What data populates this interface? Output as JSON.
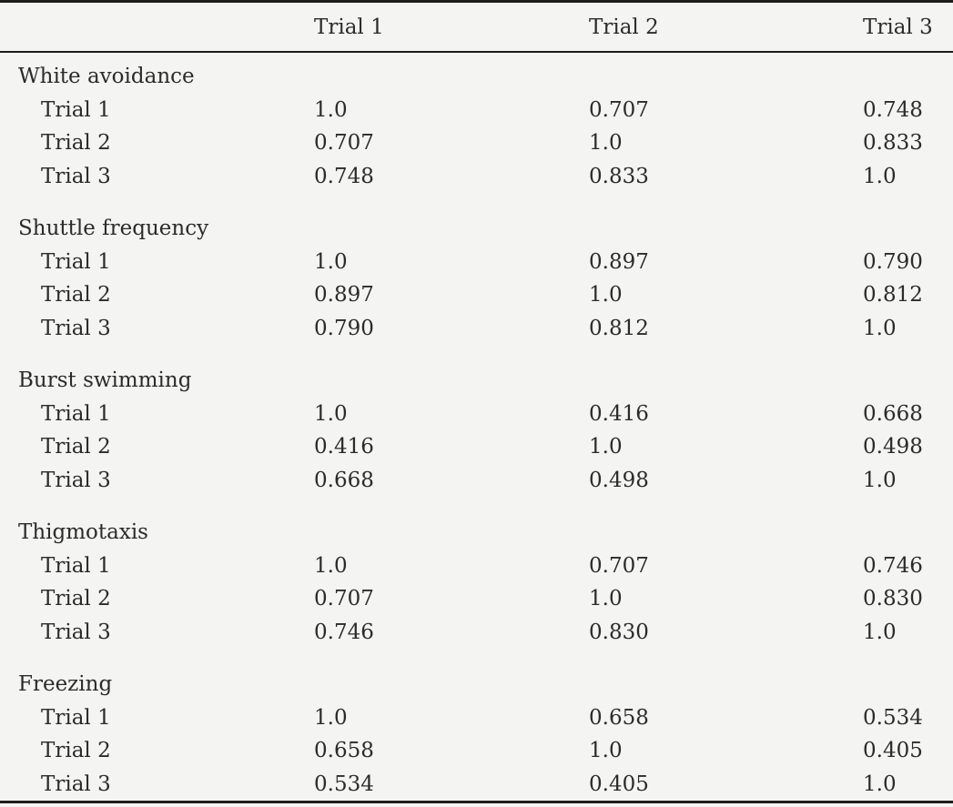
{
  "colors": {
    "background": "#f4f4f2",
    "text": "#2b2b29",
    "rule": "#1d1d1b"
  },
  "table": {
    "columns": [
      "",
      "Trial 1",
      "Trial 2",
      "Trial 3"
    ],
    "sections": [
      {
        "name": "White avoidance",
        "rows": [
          {
            "label": "Trial 1",
            "values": [
              "1.0",
              "0.707",
              "0.748"
            ]
          },
          {
            "label": "Trial 2",
            "values": [
              "0.707",
              "1.0",
              "0.833"
            ]
          },
          {
            "label": "Trial 3",
            "values": [
              "0.748",
              "0.833",
              "1.0"
            ]
          }
        ]
      },
      {
        "name": "Shuttle frequency",
        "rows": [
          {
            "label": "Trial 1",
            "values": [
              "1.0",
              "0.897",
              "0.790"
            ]
          },
          {
            "label": "Trial 2",
            "values": [
              "0.897",
              "1.0",
              "0.812"
            ]
          },
          {
            "label": "Trial 3",
            "values": [
              "0.790",
              "0.812",
              "1.0"
            ]
          }
        ]
      },
      {
        "name": "Burst swimming",
        "rows": [
          {
            "label": "Trial 1",
            "values": [
              "1.0",
              "0.416",
              "0.668"
            ]
          },
          {
            "label": "Trial 2",
            "values": [
              "0.416",
              "1.0",
              "0.498"
            ]
          },
          {
            "label": "Trial 3",
            "values": [
              "0.668",
              "0.498",
              "1.0"
            ]
          }
        ]
      },
      {
        "name": "Thigmotaxis",
        "rows": [
          {
            "label": "Trial 1",
            "values": [
              "1.0",
              "0.707",
              "0.746"
            ]
          },
          {
            "label": "Trial 2",
            "values": [
              "0.707",
              "1.0",
              "0.830"
            ]
          },
          {
            "label": "Trial 3",
            "values": [
              "0.746",
              "0.830",
              "1.0"
            ]
          }
        ]
      },
      {
        "name": "Freezing",
        "rows": [
          {
            "label": "Trial 1",
            "values": [
              "1.0",
              "0.658",
              "0.534"
            ]
          },
          {
            "label": "Trial 2",
            "values": [
              "0.658",
              "1.0",
              "0.405"
            ]
          },
          {
            "label": "Trial 3",
            "values": [
              "0.534",
              "0.405",
              "1.0"
            ]
          }
        ]
      }
    ]
  }
}
